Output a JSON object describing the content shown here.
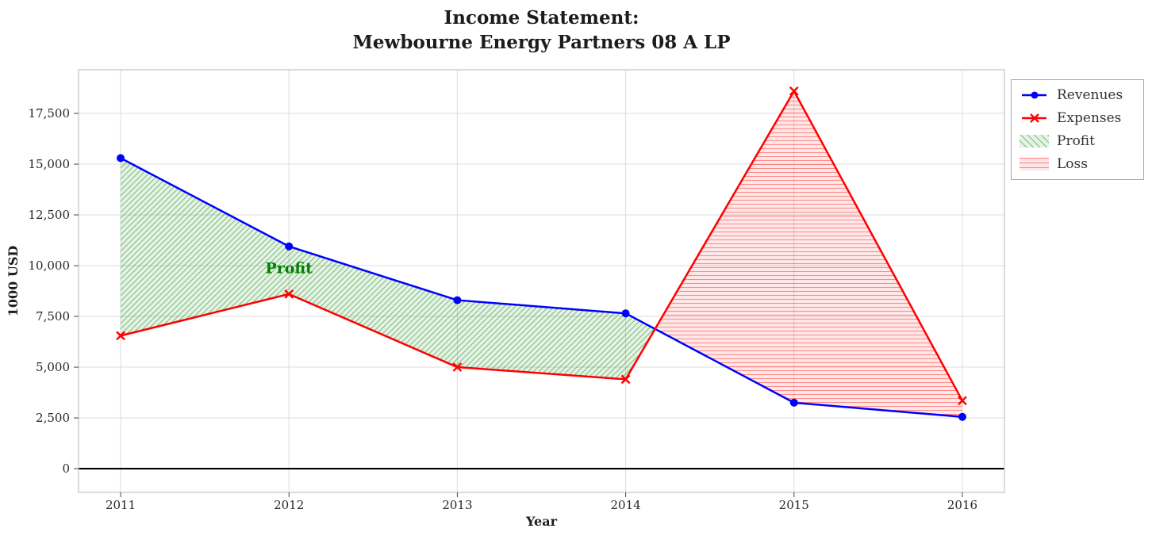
{
  "title": {
    "line1": "Income Statement:",
    "line2": "Mewbourne Energy Partners 08 A LP"
  },
  "chart_data": {
    "type": "line",
    "x": [
      2011,
      2012,
      2013,
      2014,
      2015,
      2016
    ],
    "series": [
      {
        "name": "Revenues",
        "marker": "circle",
        "color": "#0000ff",
        "values": [
          15300,
          10950,
          8300,
          7650,
          3250,
          2550
        ]
      },
      {
        "name": "Expenses",
        "marker": "x",
        "color": "#ff0000",
        "values": [
          6550,
          8600,
          5000,
          4400,
          18600,
          3350
        ]
      }
    ],
    "fills": [
      {
        "name": "Profit",
        "condition": "revenues > expenses",
        "color": "#008000",
        "hatch": "diagonal"
      },
      {
        "name": "Loss",
        "condition": "expenses > revenues",
        "color": "#ff0000",
        "hatch": "horizontal"
      }
    ],
    "annotation": {
      "text": "Profit",
      "x": 2012,
      "y": 9900,
      "color": "#008000"
    },
    "xlabel": "Year",
    "ylabel": "1000 USD",
    "xlim": [
      2010.75,
      2016.25
    ],
    "ylim": [
      -1170,
      19650
    ],
    "xticks": [
      2011,
      2012,
      2013,
      2014,
      2015,
      2016
    ],
    "yticks": [
      0,
      2500,
      5000,
      7500,
      10000,
      12500,
      15000,
      17500
    ],
    "grid": true,
    "zero_line": true,
    "legend": {
      "position": "upper-right-outside",
      "entries": [
        "Revenues",
        "Expenses",
        "Profit",
        "Loss"
      ]
    }
  }
}
